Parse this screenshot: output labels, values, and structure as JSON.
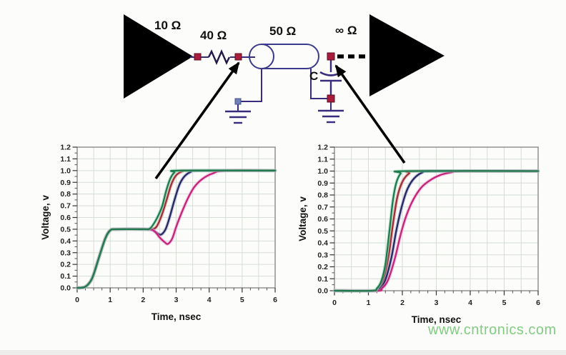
{
  "watermark": {
    "text": "www.cntronics.com",
    "color": "#82cd82"
  },
  "circuit": {
    "labels": {
      "driver_impedance": "10 Ω",
      "series_resistor": "40 Ω",
      "line_impedance": "50 Ω",
      "receiver_impedance": "∞ Ω",
      "capacitor": "C"
    },
    "colors": {
      "wire": "#3a2c7c",
      "node": "#a81c3c",
      "ground_node": "#7080b8",
      "component": "#000000"
    }
  },
  "chart_data": [
    {
      "id": "chart-left",
      "type": "line",
      "title": "",
      "xlabel": "Time, nsec",
      "ylabel": "Voltage, v",
      "xlim": [
        0,
        6
      ],
      "ylim": [
        0,
        1.2
      ],
      "xticks": [
        0,
        1,
        2,
        3,
        4,
        5,
        6
      ],
      "yticks": [
        "0.0",
        "0.1",
        "0.2",
        "0.3",
        "0.4",
        "0.5",
        "0.6",
        "0.7",
        "0.8",
        "0.9",
        "1.0",
        "1.1",
        "1.2"
      ],
      "grid": {
        "x_step": 0.5,
        "y_step": 0.1,
        "x_minor": 0.25,
        "y_minor": 0.05
      },
      "legend": "none",
      "series": [
        {
          "name": "red",
          "color": "#9e2f38",
          "glow": "#d49a94",
          "points": [
            [
              0,
              0
            ],
            [
              0.25,
              0.01
            ],
            [
              0.45,
              0.08
            ],
            [
              0.65,
              0.25
            ],
            [
              0.85,
              0.42
            ],
            [
              1.0,
              0.49
            ],
            [
              1.2,
              0.5
            ],
            [
              2.05,
              0.5
            ],
            [
              2.25,
              0.5
            ],
            [
              2.4,
              0.52
            ],
            [
              2.55,
              0.61
            ],
            [
              2.7,
              0.74
            ],
            [
              2.85,
              0.88
            ],
            [
              3.0,
              0.96
            ],
            [
              3.2,
              0.995
            ],
            [
              3.4,
              1.0
            ],
            [
              6,
              1.0
            ]
          ]
        },
        {
          "name": "navy",
          "color": "#26295e",
          "glow": "#9a9ccc",
          "points": [
            [
              0,
              0
            ],
            [
              0.25,
              0.01
            ],
            [
              0.45,
              0.08
            ],
            [
              0.65,
              0.25
            ],
            [
              0.85,
              0.42
            ],
            [
              1.0,
              0.49
            ],
            [
              1.2,
              0.5
            ],
            [
              2.1,
              0.5
            ],
            [
              2.3,
              0.49
            ],
            [
              2.45,
              0.462
            ],
            [
              2.55,
              0.455
            ],
            [
              2.68,
              0.5
            ],
            [
              2.8,
              0.6
            ],
            [
              2.95,
              0.75
            ],
            [
              3.1,
              0.88
            ],
            [
              3.25,
              0.95
            ],
            [
              3.45,
              0.99
            ],
            [
              3.65,
              1.0
            ],
            [
              6,
              1.0
            ]
          ]
        },
        {
          "name": "magenta",
          "color": "#c2267a",
          "glow": "#f09cce",
          "points": [
            [
              0,
              0
            ],
            [
              0.25,
              0.01
            ],
            [
              0.45,
              0.08
            ],
            [
              0.65,
              0.25
            ],
            [
              0.85,
              0.42
            ],
            [
              1.0,
              0.49
            ],
            [
              1.2,
              0.5
            ],
            [
              2.15,
              0.5
            ],
            [
              2.35,
              0.48
            ],
            [
              2.5,
              0.43
            ],
            [
              2.65,
              0.39
            ],
            [
              2.75,
              0.375
            ],
            [
              2.88,
              0.42
            ],
            [
              3.0,
              0.52
            ],
            [
              3.15,
              0.63
            ],
            [
              3.35,
              0.76
            ],
            [
              3.55,
              0.86
            ],
            [
              3.8,
              0.93
            ],
            [
              4.1,
              0.975
            ],
            [
              4.5,
              1.0
            ],
            [
              6,
              1.0
            ]
          ]
        },
        {
          "name": "green",
          "color": "#1f7a4d",
          "glow": "#8fd4b4",
          "points": [
            [
              0,
              0
            ],
            [
              0.25,
              0.01
            ],
            [
              0.45,
              0.08
            ],
            [
              0.65,
              0.25
            ],
            [
              0.85,
              0.42
            ],
            [
              1.0,
              0.49
            ],
            [
              1.2,
              0.5
            ],
            [
              2.0,
              0.5
            ],
            [
              2.2,
              0.505
            ],
            [
              2.35,
              0.56
            ],
            [
              2.48,
              0.63
            ],
            [
              2.58,
              0.7
            ],
            [
              2.7,
              0.83
            ],
            [
              2.82,
              0.93
            ],
            [
              2.95,
              0.985
            ],
            [
              3.1,
              1.0
            ],
            [
              6,
              1.0
            ]
          ]
        }
      ]
    },
    {
      "id": "chart-right",
      "type": "line",
      "title": "",
      "xlabel": "Time, nsec",
      "ylabel": "Voltage, v",
      "xlim": [
        0,
        6
      ],
      "ylim": [
        0,
        1.2
      ],
      "xticks": [
        0,
        1,
        2,
        3,
        4,
        5,
        6
      ],
      "yticks": [
        "0.0",
        "0.1",
        "0.2",
        "0.3",
        "0.4",
        "0.5",
        "0.6",
        "0.7",
        "0.8",
        "0.9",
        "1.0",
        "1.1",
        "1.2"
      ],
      "grid": {
        "x_step": 0.5,
        "y_step": 0.1,
        "x_minor": 0.25,
        "y_minor": 0.05
      },
      "legend": "none",
      "series": [
        {
          "name": "red",
          "color": "#9e2f38",
          "glow": "#d49a94",
          "points": [
            [
              0,
              0
            ],
            [
              1.15,
              0
            ],
            [
              1.3,
              0.02
            ],
            [
              1.45,
              0.1
            ],
            [
              1.6,
              0.3
            ],
            [
              1.72,
              0.55
            ],
            [
              1.85,
              0.78
            ],
            [
              2.0,
              0.91
            ],
            [
              2.2,
              0.98
            ],
            [
              2.45,
              1.0
            ],
            [
              6,
              1.0
            ]
          ]
        },
        {
          "name": "navy",
          "color": "#26295e",
          "glow": "#9a9ccc",
          "points": [
            [
              0,
              0
            ],
            [
              1.2,
              0
            ],
            [
              1.35,
              0.02
            ],
            [
              1.5,
              0.09
            ],
            [
              1.68,
              0.28
            ],
            [
              1.82,
              0.5
            ],
            [
              1.98,
              0.7
            ],
            [
              2.15,
              0.85
            ],
            [
              2.35,
              0.94
            ],
            [
              2.6,
              0.99
            ],
            [
              2.85,
              1.0
            ],
            [
              6,
              1.0
            ]
          ]
        },
        {
          "name": "magenta",
          "color": "#c2267a",
          "glow": "#f09cce",
          "points": [
            [
              0,
              0
            ],
            [
              1.25,
              0
            ],
            [
              1.4,
              0.02
            ],
            [
              1.58,
              0.09
            ],
            [
              1.78,
              0.27
            ],
            [
              1.95,
              0.47
            ],
            [
              2.12,
              0.63
            ],
            [
              2.32,
              0.76
            ],
            [
              2.55,
              0.86
            ],
            [
              2.8,
              0.92
            ],
            [
              3.1,
              0.965
            ],
            [
              3.45,
              0.99
            ],
            [
              3.8,
              1.0
            ],
            [
              6,
              1.0
            ]
          ]
        },
        {
          "name": "green",
          "color": "#1f7a4d",
          "glow": "#8fd4b4",
          "points": [
            [
              0,
              0
            ],
            [
              1.1,
              0
            ],
            [
              1.25,
              0.02
            ],
            [
              1.38,
              0.08
            ],
            [
              1.5,
              0.22
            ],
            [
              1.62,
              0.5
            ],
            [
              1.72,
              0.75
            ],
            [
              1.82,
              0.9
            ],
            [
              1.95,
              0.98
            ],
            [
              2.1,
              1.0
            ],
            [
              6,
              1.0
            ]
          ]
        }
      ]
    }
  ]
}
